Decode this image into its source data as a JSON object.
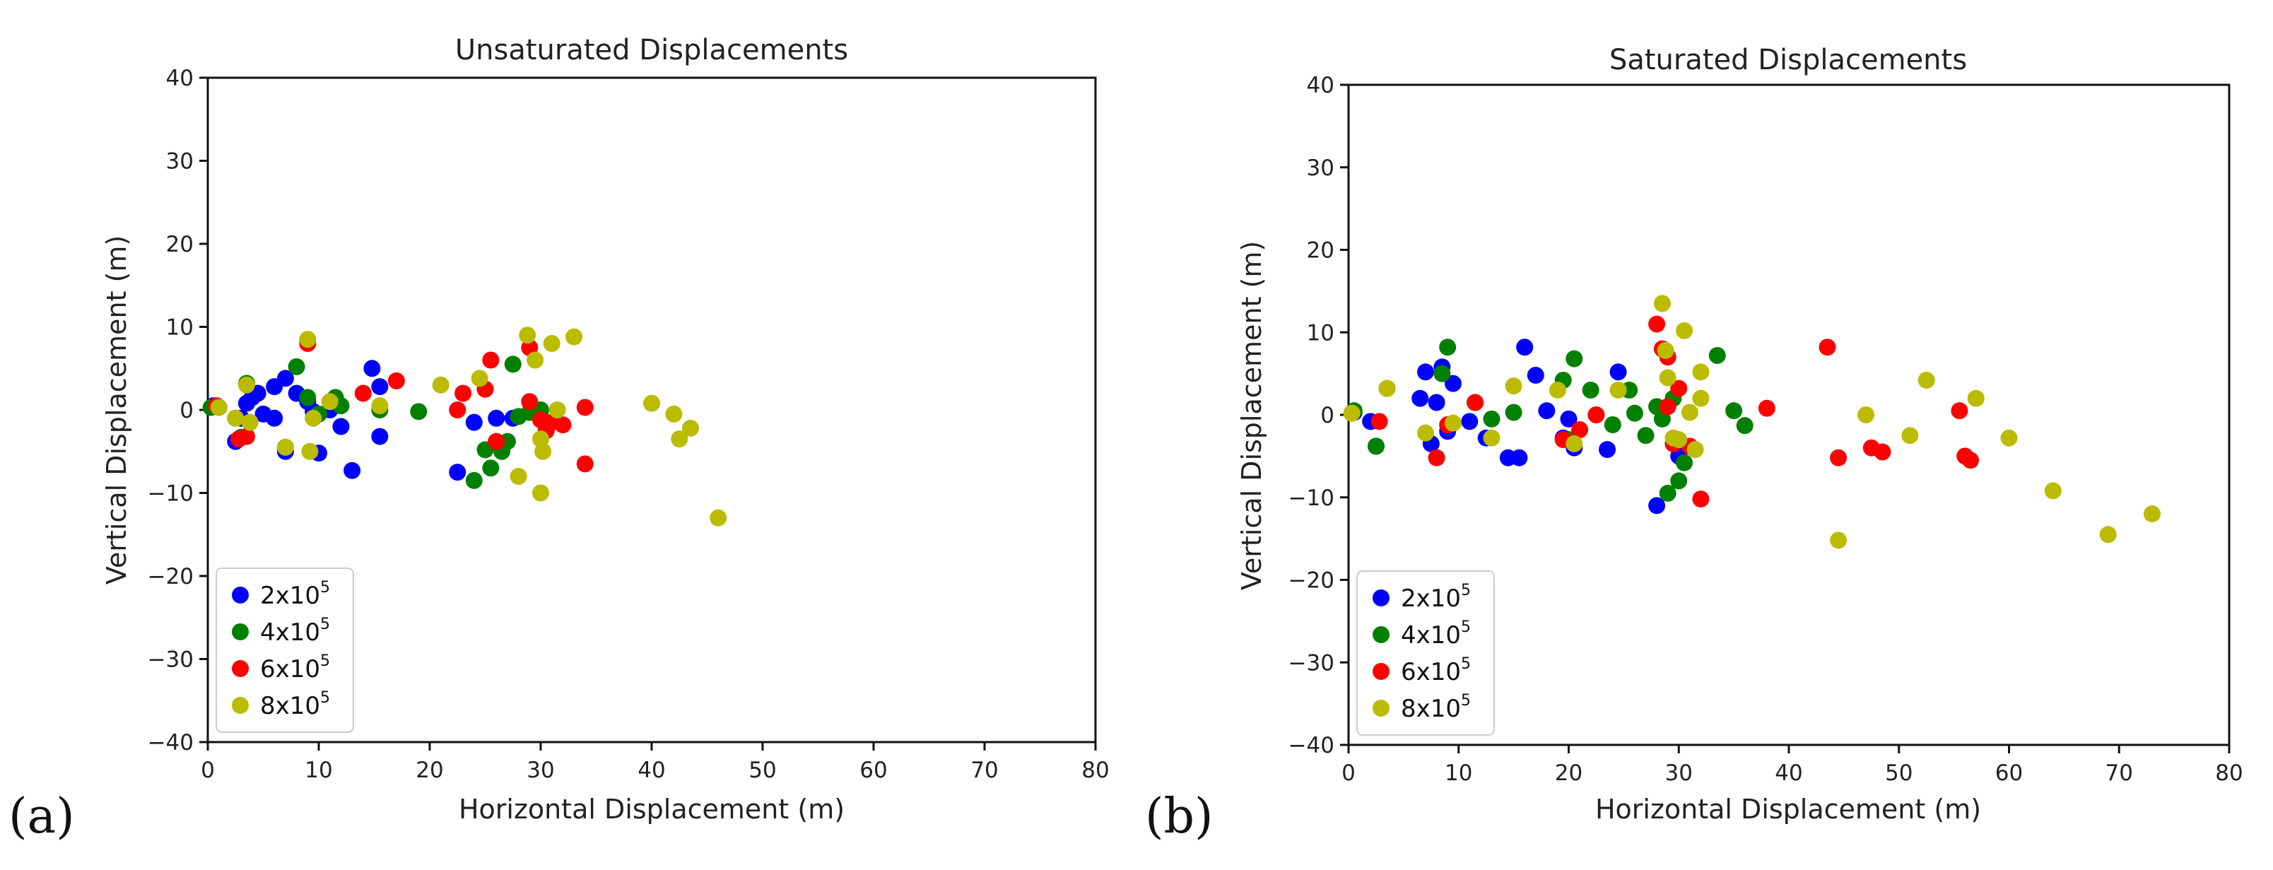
{
  "panels": [
    {
      "label": "(a)",
      "chart_data": {
        "type": "scatter",
        "title": "Unsaturated Displacements",
        "xlabel": "Horizontal Displacement (m)",
        "ylabel": "Vertical Displacement (m)",
        "xlim": [
          0,
          80
        ],
        "ylim": [
          -40,
          40
        ],
        "xticks": [
          0,
          10,
          20,
          30,
          40,
          50,
          60,
          70,
          80
        ],
        "yticks": [
          -40,
          -30,
          -20,
          -10,
          0,
          10,
          20,
          30,
          40
        ],
        "legend_position": "lower-left",
        "series": [
          {
            "name": "2x10",
            "exp": "5",
            "color": "#0000ff",
            "points": [
              [
                0.5,
                0.5
              ],
              [
                1.0,
                0.3
              ],
              [
                2.5,
                -3.8
              ],
              [
                3.0,
                -1.0
              ],
              [
                3.5,
                0.8
              ],
              [
                4.0,
                1.5
              ],
              [
                4.5,
                2.0
              ],
              [
                5.0,
                -0.5
              ],
              [
                6.0,
                2.8
              ],
              [
                6.0,
                -1.0
              ],
              [
                7.0,
                3.8
              ],
              [
                7.0,
                -5.0
              ],
              [
                8.0,
                2.0
              ],
              [
                9.0,
                1.0
              ],
              [
                9.5,
                -0.2
              ],
              [
                10.0,
                -5.2
              ],
              [
                11.0,
                0.0
              ],
              [
                12.0,
                -2.0
              ],
              [
                13.0,
                -7.3
              ],
              [
                14.8,
                5.0
              ],
              [
                15.5,
                2.8
              ],
              [
                15.5,
                -3.2
              ],
              [
                22.5,
                -7.5
              ],
              [
                24.0,
                -1.5
              ],
              [
                26.0,
                -1.0
              ],
              [
                27.5,
                -1.0
              ]
            ]
          },
          {
            "name": "4x10",
            "exp": "5",
            "color": "#008000",
            "points": [
              [
                0.3,
                0.3
              ],
              [
                2.5,
                -1.0
              ],
              [
                3.0,
                -3.3
              ],
              [
                3.5,
                3.2
              ],
              [
                7.0,
                -4.5
              ],
              [
                8.0,
                5.2
              ],
              [
                9.0,
                1.5
              ],
              [
                10.0,
                -0.5
              ],
              [
                11.5,
                1.5
              ],
              [
                12.0,
                0.5
              ],
              [
                15.5,
                0.0
              ],
              [
                19.0,
                -0.2
              ],
              [
                24.0,
                -8.5
              ],
              [
                25.0,
                -4.8
              ],
              [
                25.5,
                -7.0
              ],
              [
                26.5,
                -5.0
              ],
              [
                27.0,
                -3.8
              ],
              [
                28.0,
                -0.8
              ],
              [
                29.0,
                -0.3
              ],
              [
                30.0,
                0.0
              ],
              [
                30.5,
                -1.5
              ],
              [
                27.5,
                5.5
              ]
            ]
          },
          {
            "name": "6x10",
            "exp": "5",
            "color": "#ff0000",
            "points": [
              [
                0.8,
                0.5
              ],
              [
                2.8,
                -3.5
              ],
              [
                3.5,
                -3.2
              ],
              [
                9.0,
                8.0
              ],
              [
                14.0,
                2.0
              ],
              [
                17.0,
                3.5
              ],
              [
                22.5,
                0.0
              ],
              [
                23.0,
                2.0
              ],
              [
                25.0,
                2.5
              ],
              [
                25.5,
                6.0
              ],
              [
                26.0,
                -3.8
              ],
              [
                29.0,
                7.5
              ],
              [
                29.0,
                1.0
              ],
              [
                30.0,
                -1.2
              ],
              [
                30.5,
                -2.5
              ],
              [
                31.0,
                -1.5
              ],
              [
                32.0,
                -1.8
              ],
              [
                34.0,
                0.3
              ],
              [
                34.0,
                -6.5
              ]
            ]
          },
          {
            "name": "8x10",
            "exp": "5",
            "color": "#bbbb00",
            "points": [
              [
                1.0,
                0.3
              ],
              [
                2.5,
                -1.0
              ],
              [
                3.5,
                3.0
              ],
              [
                3.8,
                -1.5
              ],
              [
                7.0,
                -4.5
              ],
              [
                9.0,
                8.5
              ],
              [
                9.2,
                -5.0
              ],
              [
                9.5,
                -1.0
              ],
              [
                11.0,
                1.0
              ],
              [
                15.5,
                0.5
              ],
              [
                21.0,
                3.0
              ],
              [
                24.5,
                3.8
              ],
              [
                28.0,
                -8.0
              ],
              [
                28.8,
                9.0
              ],
              [
                29.5,
                6.0
              ],
              [
                30.0,
                -3.5
              ],
              [
                30.2,
                -5.0
              ],
              [
                30.0,
                -10.0
              ],
              [
                31.0,
                8.0
              ],
              [
                31.5,
                0.0
              ],
              [
                33.0,
                8.8
              ],
              [
                40.0,
                0.8
              ],
              [
                42.0,
                -0.5
              ],
              [
                42.5,
                -3.5
              ],
              [
                43.5,
                -2.2
              ],
              [
                46.0,
                -13.0
              ]
            ]
          }
        ]
      }
    },
    {
      "label": "(b)",
      "chart_data": {
        "type": "scatter",
        "title": "Saturated Displacements",
        "xlabel": "Horizontal Displacement (m)",
        "ylabel": "Vertical Displacement (m)",
        "xlim": [
          0,
          80
        ],
        "ylim": [
          -40,
          40
        ],
        "xticks": [
          0,
          10,
          20,
          30,
          40,
          50,
          60,
          70,
          80
        ],
        "yticks": [
          -40,
          -30,
          -20,
          -10,
          0,
          10,
          20,
          30,
          40
        ],
        "legend_position": "lower-left",
        "series": [
          {
            "name": "2x10",
            "exp": "5",
            "color": "#0000ff",
            "points": [
              [
                0.5,
                0.3
              ],
              [
                2.0,
                -0.8
              ],
              [
                2.5,
                -3.8
              ],
              [
                6.5,
                2.0
              ],
              [
                7.0,
                5.2
              ],
              [
                7.5,
                -3.5
              ],
              [
                8.0,
                1.5
              ],
              [
                8.5,
                5.8
              ],
              [
                9.0,
                -2.0
              ],
              [
                9.5,
                3.8
              ],
              [
                11.0,
                -0.8
              ],
              [
                12.5,
                -2.8
              ],
              [
                14.5,
                -5.2
              ],
              [
                15.5,
                -5.2
              ],
              [
                16.0,
                8.2
              ],
              [
                17.0,
                4.8
              ],
              [
                18.0,
                0.5
              ],
              [
                19.5,
                -2.8
              ],
              [
                20.0,
                -0.5
              ],
              [
                20.5,
                -4.0
              ],
              [
                23.5,
                -4.2
              ],
              [
                24.5,
                5.2
              ],
              [
                28.0,
                -11.0
              ],
              [
                30.0,
                -5.0
              ]
            ]
          },
          {
            "name": "4x10",
            "exp": "5",
            "color": "#008000",
            "points": [
              [
                0.5,
                0.5
              ],
              [
                2.5,
                -3.8
              ],
              [
                3.5,
                3.2
              ],
              [
                8.5,
                5.0
              ],
              [
                9.0,
                8.2
              ],
              [
                11.5,
                1.5
              ],
              [
                13.0,
                -0.5
              ],
              [
                15.0,
                0.3
              ],
              [
                19.5,
                4.2
              ],
              [
                20.0,
                -3.0
              ],
              [
                20.5,
                6.8
              ],
              [
                22.0,
                3.0
              ],
              [
                24.0,
                -1.2
              ],
              [
                25.5,
                3.0
              ],
              [
                26.0,
                0.2
              ],
              [
                27.0,
                -2.5
              ],
              [
                28.0,
                1.0
              ],
              [
                28.5,
                -0.5
              ],
              [
                29.0,
                -9.5
              ],
              [
                29.5,
                2.0
              ],
              [
                30.0,
                -8.0
              ],
              [
                30.5,
                -5.8
              ],
              [
                33.5,
                7.2
              ],
              [
                35.0,
                0.5
              ],
              [
                36.0,
                -1.3
              ]
            ]
          },
          {
            "name": "6x10",
            "exp": "5",
            "color": "#ff0000",
            "points": [
              [
                2.8,
                -0.8
              ],
              [
                8.0,
                -5.2
              ],
              [
                9.0,
                -1.2
              ],
              [
                11.5,
                1.5
              ],
              [
                19.5,
                -3.0
              ],
              [
                21.0,
                -1.8
              ],
              [
                22.5,
                0.0
              ],
              [
                28.0,
                11.0
              ],
              [
                28.5,
                8.0
              ],
              [
                29.0,
                7.0
              ],
              [
                29.0,
                1.0
              ],
              [
                29.5,
                -3.5
              ],
              [
                30.0,
                3.2
              ],
              [
                31.0,
                -3.8
              ],
              [
                32.0,
                -10.2
              ],
              [
                38.0,
                0.8
              ],
              [
                43.5,
                8.2
              ],
              [
                44.5,
                -5.2
              ],
              [
                47.5,
                -4.0
              ],
              [
                48.5,
                -4.5
              ],
              [
                55.5,
                0.5
              ],
              [
                56.0,
                -5.0
              ],
              [
                56.5,
                -5.5
              ]
            ]
          },
          {
            "name": "8x10",
            "exp": "5",
            "color": "#bbbb00",
            "points": [
              [
                0.3,
                0.2
              ],
              [
                3.5,
                3.2
              ],
              [
                7.0,
                -2.2
              ],
              [
                9.5,
                -1.0
              ],
              [
                13.0,
                -2.8
              ],
              [
                15.0,
                3.5
              ],
              [
                19.0,
                3.0
              ],
              [
                20.5,
                -3.5
              ],
              [
                24.5,
                3.0
              ],
              [
                28.5,
                13.5
              ],
              [
                28.8,
                7.8
              ],
              [
                29.0,
                4.5
              ],
              [
                29.5,
                -2.8
              ],
              [
                30.0,
                -3.0
              ],
              [
                30.5,
                10.2
              ],
              [
                31.0,
                0.3
              ],
              [
                31.5,
                -4.2
              ],
              [
                32.0,
                5.2
              ],
              [
                32.0,
                2.0
              ],
              [
                44.5,
                -15.2
              ],
              [
                47.0,
                0.0
              ],
              [
                51.0,
                -2.5
              ],
              [
                52.5,
                4.2
              ],
              [
                57.0,
                2.0
              ],
              [
                60.0,
                -2.8
              ],
              [
                64.0,
                -9.2
              ],
              [
                69.0,
                -14.5
              ],
              [
                73.0,
                -12.0
              ]
            ]
          }
        ]
      }
    }
  ]
}
